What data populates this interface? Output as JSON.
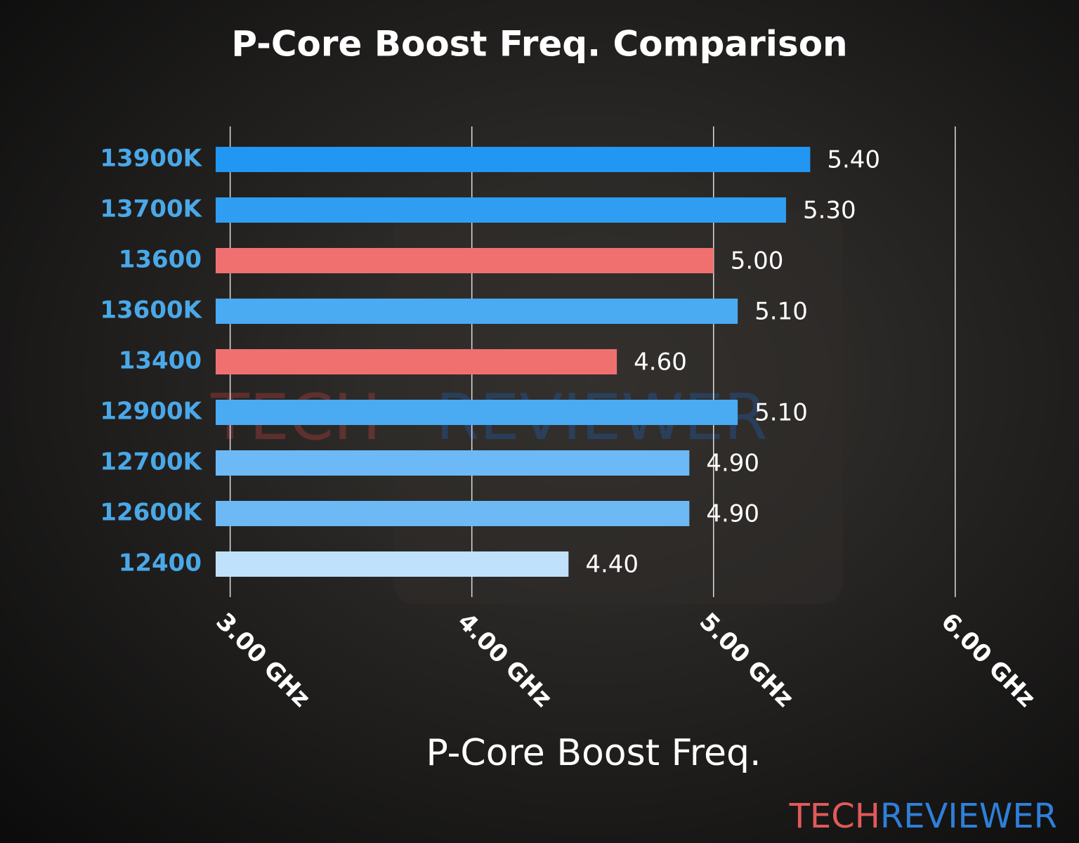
{
  "chart_data": {
    "type": "bar",
    "orientation": "horizontal",
    "title": "P-Core Boost Freq. Comparison",
    "x_label": "P-Core Boost Freq.",
    "categories": [
      "13900K",
      "13700K",
      "13600",
      "13600K",
      "13400",
      "12900K",
      "12700K",
      "12600K",
      "12400"
    ],
    "values": [
      5.4,
      5.3,
      5.0,
      5.1,
      4.6,
      5.1,
      4.9,
      4.9,
      4.4
    ],
    "value_labels": [
      "5.40",
      "5.30",
      "5.00",
      "5.10",
      "4.60",
      "5.10",
      "4.90",
      "4.90",
      "4.40"
    ],
    "colors": [
      "#2196f3",
      "#2f9df1",
      "#f07070",
      "#4aaaf2",
      "#f07070",
      "#4aaaf2",
      "#6cb9f5",
      "#6cb9f5",
      "#bfe1fc"
    ],
    "xlim": [
      2.94,
      6.05
    ],
    "xticks": [
      {
        "value": 3,
        "label": "3.00 GHz"
      },
      {
        "value": 4,
        "label": "4.00 GHz"
      },
      {
        "value": 5,
        "label": "5.00 GHz"
      },
      {
        "value": 6,
        "label": "6.00 GHz"
      }
    ],
    "grid": true,
    "watermark": {
      "left": "TECH",
      "right": "REVIEWER"
    }
  }
}
